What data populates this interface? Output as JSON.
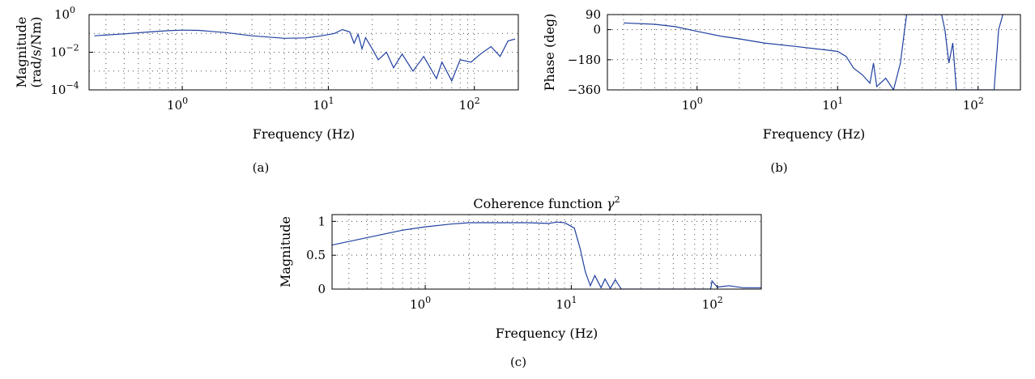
{
  "figure": {
    "captions": [
      "(a)",
      "(b)",
      "(c)"
    ]
  },
  "chart_data": [
    {
      "type": "line",
      "panel": "(a)",
      "title": "",
      "xlabel": "Frequency (Hz)",
      "ylabel_line1": "Magnitude",
      "ylabel_line2": "(rad/s/Nm)",
      "xscale": "log",
      "yscale": "log",
      "xlim": [
        0.23,
        200
      ],
      "ylim": [
        0.0001,
        1
      ],
      "xticks": [
        {
          "v": 1,
          "m": "10",
          "e": "0"
        },
        {
          "v": 10,
          "m": "10",
          "e": "1"
        },
        {
          "v": 100,
          "m": "10",
          "e": "2"
        }
      ],
      "yticks": [
        {
          "v": 1,
          "m": "10",
          "e": "0"
        },
        {
          "v": 0.01,
          "m": "10",
          "e": "−2"
        },
        {
          "v": 0.0001,
          "m": "10",
          "e": "−4"
        }
      ],
      "grid": true,
      "series_color": "#2040a0",
      "points": [
        [
          0.25,
          0.075
        ],
        [
          0.4,
          0.095
        ],
        [
          0.6,
          0.12
        ],
        [
          0.8,
          0.14
        ],
        [
          1.0,
          0.15
        ],
        [
          1.3,
          0.145
        ],
        [
          2.0,
          0.11
        ],
        [
          3.0,
          0.075
        ],
        [
          5.0,
          0.055
        ],
        [
          7.0,
          0.058
        ],
        [
          9.0,
          0.075
        ],
        [
          11.0,
          0.1
        ],
        [
          12.5,
          0.16
        ],
        [
          14.0,
          0.12
        ],
        [
          15.0,
          0.03
        ],
        [
          16.0,
          0.09
        ],
        [
          17.0,
          0.015
        ],
        [
          18.0,
          0.06
        ],
        [
          20.0,
          0.015
        ],
        [
          22.0,
          0.004
        ],
        [
          25.0,
          0.01
        ],
        [
          28.0,
          0.0015
        ],
        [
          32.0,
          0.008
        ],
        [
          38.0,
          0.001
        ],
        [
          45.0,
          0.006
        ],
        [
          55.0,
          0.0004
        ],
        [
          60.0,
          0.003
        ],
        [
          70.0,
          0.0003
        ],
        [
          80.0,
          0.004
        ],
        [
          95.0,
          0.003
        ],
        [
          110.0,
          0.008
        ],
        [
          130.0,
          0.02
        ],
        [
          150.0,
          0.006
        ],
        [
          170.0,
          0.04
        ],
        [
          190.0,
          0.05
        ]
      ]
    },
    {
      "type": "line",
      "panel": "(b)",
      "title": "",
      "xlabel": "Frequency (Hz)",
      "ylabel": "Phase (deg)",
      "xscale": "log",
      "xlim": [
        0.23,
        200
      ],
      "ylim": [
        -360,
        90
      ],
      "xticks": [
        {
          "v": 1,
          "m": "10",
          "e": "0"
        },
        {
          "v": 10,
          "m": "10",
          "e": "1"
        },
        {
          "v": 100,
          "m": "10",
          "e": "2"
        }
      ],
      "yticks": [
        {
          "v": 90,
          "t": "90"
        },
        {
          "v": 0,
          "t": "0"
        },
        {
          "v": -180,
          "t": "−180"
        },
        {
          "v": -360,
          "t": "−360"
        }
      ],
      "grid": true,
      "series_color": "#2040a0",
      "points": [
        [
          0.3,
          40
        ],
        [
          0.5,
          32
        ],
        [
          0.7,
          18
        ],
        [
          1.0,
          -10
        ],
        [
          1.5,
          -40
        ],
        [
          2.0,
          -55
        ],
        [
          3.0,
          -80
        ],
        [
          5.0,
          -100
        ],
        [
          8.0,
          -120
        ],
        [
          10.0,
          -130
        ],
        [
          11.5,
          -160
        ],
        [
          13.0,
          -230
        ],
        [
          15.0,
          -270
        ],
        [
          17.0,
          -320
        ],
        [
          18.0,
          -200
        ],
        [
          19.0,
          -340
        ],
        [
          22.0,
          -290
        ],
        [
          25.0,
          -360
        ],
        [
          28.0,
          -200
        ],
        [
          30.0,
          0
        ],
        [
          31.0,
          90
        ],
        [
          55.0,
          90
        ],
        [
          58.0,
          0
        ],
        [
          62.0,
          -200
        ],
        [
          66.0,
          -80
        ],
        [
          70.0,
          -360
        ],
        [
          130.0,
          -360
        ],
        [
          140.0,
          0
        ],
        [
          150.0,
          90
        ]
      ]
    },
    {
      "type": "line",
      "panel": "(c)",
      "title_main": "Coherence function ",
      "title_symbol": "γ",
      "title_sup": "2",
      "xlabel": "Frequency (Hz)",
      "ylabel": "Magnitude",
      "xscale": "log",
      "xlim": [
        0.23,
        200
      ],
      "ylim": [
        0,
        1.1
      ],
      "xticks": [
        {
          "v": 1,
          "m": "10",
          "e": "0"
        },
        {
          "v": 10,
          "m": "10",
          "e": "1"
        },
        {
          "v": 100,
          "m": "10",
          "e": "2"
        }
      ],
      "yticks": [
        {
          "v": 0,
          "t": "0"
        },
        {
          "v": 0.5,
          "t": "0.5"
        },
        {
          "v": 1,
          "t": "1"
        }
      ],
      "grid": true,
      "series_color": "#2040a0",
      "points": [
        [
          0.23,
          0.65
        ],
        [
          0.4,
          0.76
        ],
        [
          0.7,
          0.87
        ],
        [
          1.0,
          0.92
        ],
        [
          1.5,
          0.96
        ],
        [
          2.0,
          0.98
        ],
        [
          3.0,
          0.98
        ],
        [
          5.0,
          0.98
        ],
        [
          7.0,
          0.97
        ],
        [
          8.0,
          0.99
        ],
        [
          9.0,
          0.98
        ],
        [
          10.5,
          0.9
        ],
        [
          11.5,
          0.6
        ],
        [
          12.5,
          0.25
        ],
        [
          13.5,
          0.05
        ],
        [
          14.5,
          0.2
        ],
        [
          16.0,
          0.02
        ],
        [
          17.0,
          0.15
        ],
        [
          18.5,
          0.01
        ],
        [
          20.0,
          0.14
        ],
        [
          22.0,
          0.0
        ],
        [
          90.0,
          0.0
        ],
        [
          92.0,
          0.12
        ],
        [
          100.0,
          0.03
        ],
        [
          120.0,
          0.05
        ],
        [
          150.0,
          0.02
        ],
        [
          200.0,
          0.02
        ]
      ]
    }
  ]
}
